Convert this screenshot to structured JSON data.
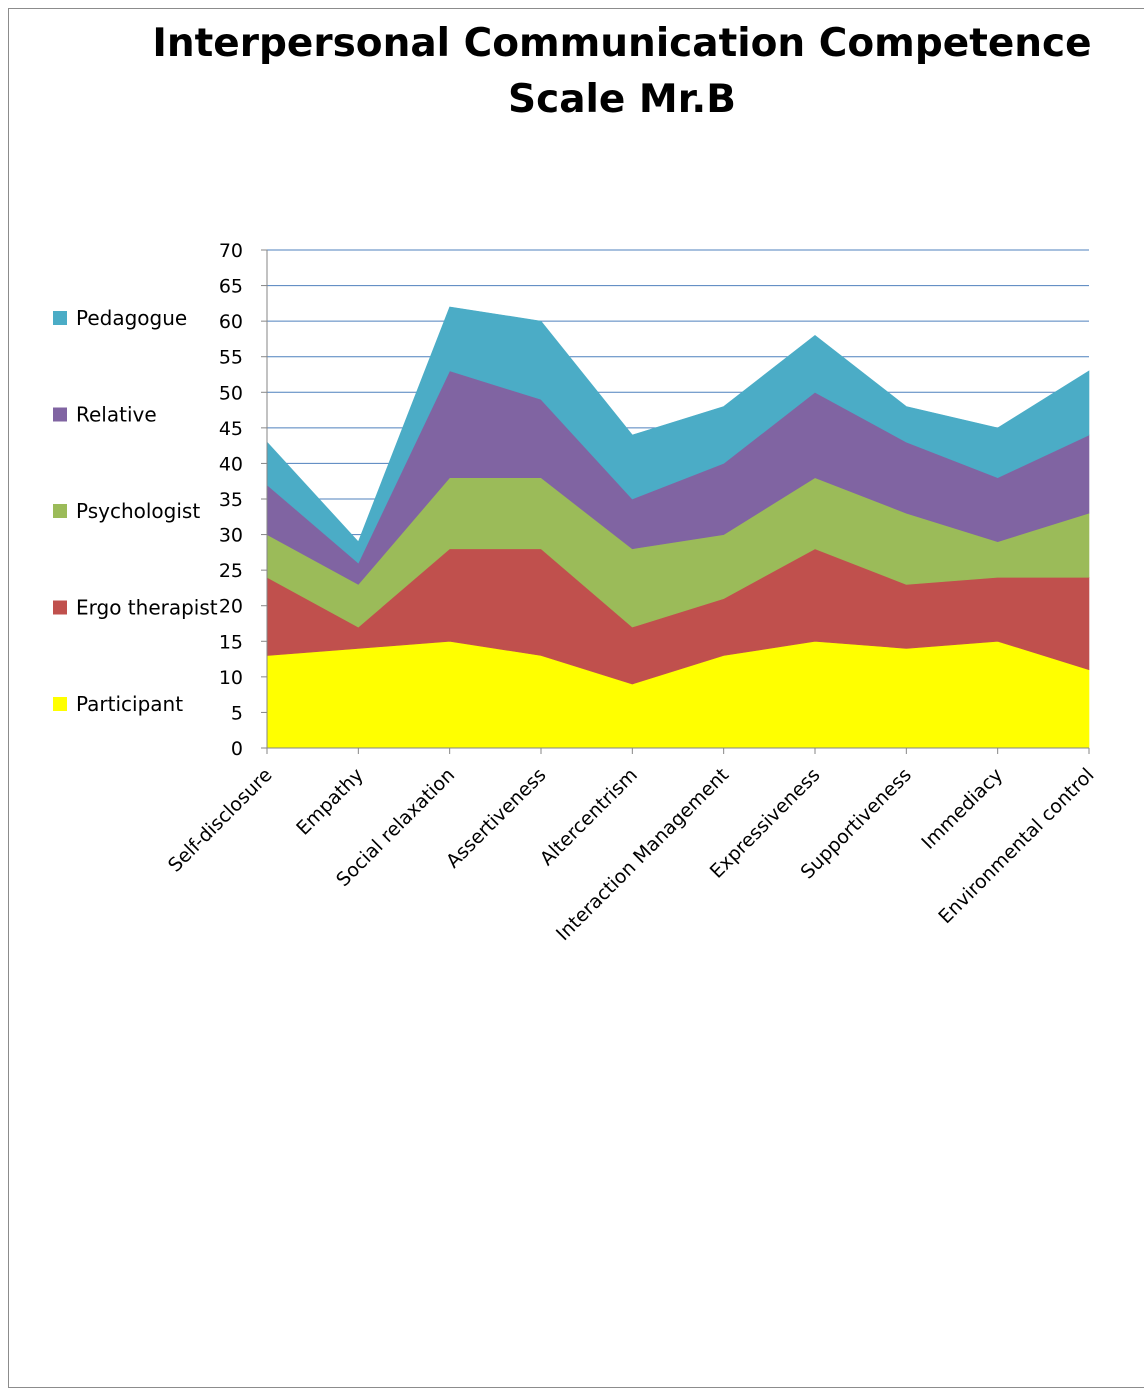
{
  "chart_data": {
    "type": "area",
    "stacked": true,
    "title_line1": "Interpersonal Communication Competence",
    "title_line2": "Scale  Mr.B",
    "xlabel": "",
    "ylabel": "",
    "ylim": [
      0,
      70
    ],
    "ytick_step": 5,
    "grid": "horizontal",
    "legend_position": "left",
    "categories": [
      "Self-disclosure",
      "Empathy",
      "Social relaxation",
      "Assertiveness",
      "Altercentrism",
      "Interaction Management",
      "Expressiveness",
      "Supportiveness",
      "Immediacy",
      "Environmental control"
    ],
    "series": [
      {
        "name": "Participant",
        "color": "#ffff00",
        "values": [
          13,
          14,
          15,
          13,
          9,
          13,
          15,
          14,
          15,
          11
        ]
      },
      {
        "name": "Ergo therapist",
        "color": "#c0504d",
        "values": [
          11,
          3,
          13,
          15,
          8,
          8,
          13,
          9,
          9,
          13
        ]
      },
      {
        "name": "Psychologist",
        "color": "#9bbb59",
        "values": [
          6,
          6,
          10,
          10,
          11,
          9,
          10,
          10,
          5,
          9
        ]
      },
      {
        "name": "Relative",
        "color": "#8064a2",
        "values": [
          7,
          3,
          15,
          11,
          7,
          10,
          12,
          10,
          9,
          11
        ]
      },
      {
        "name": "Pedagogue",
        "color": "#4bacc6",
        "values": [
          6,
          3,
          9,
          11,
          9,
          8,
          8,
          5,
          7,
          9
        ]
      }
    ]
  }
}
